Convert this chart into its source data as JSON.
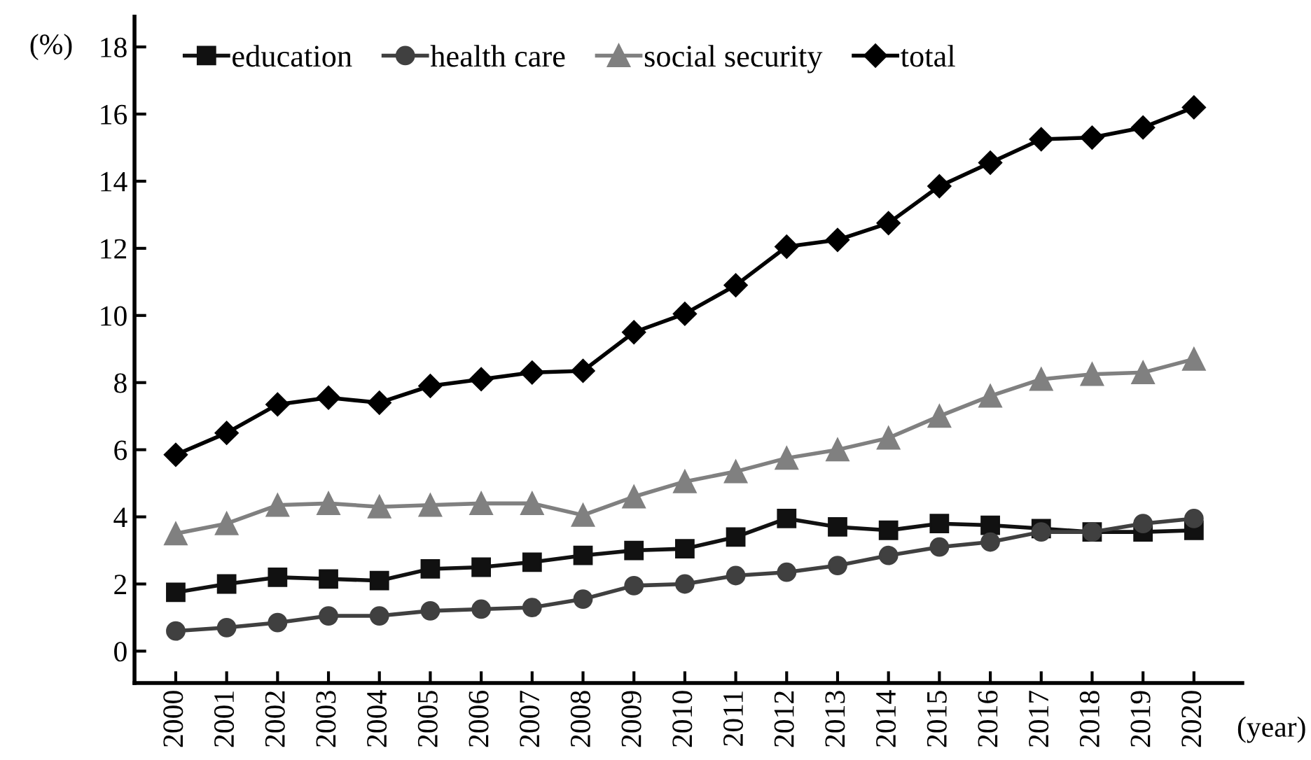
{
  "chart_data": {
    "type": "line",
    "ylabel": "(%)",
    "xlabel": "(year)",
    "categories": [
      "2000",
      "2001",
      "2002",
      "2003",
      "2004",
      "2005",
      "2006",
      "2007",
      "2008",
      "2009",
      "2010",
      "2011",
      "2012",
      "2013",
      "2014",
      "2015",
      "2016",
      "2017",
      "2018",
      "2019",
      "2020"
    ],
    "series": [
      {
        "name": "education",
        "color": "#111111",
        "marker": "square",
        "values": [
          1.75,
          2.0,
          2.2,
          2.15,
          2.1,
          2.45,
          2.5,
          2.65,
          2.85,
          3.0,
          3.05,
          3.4,
          3.95,
          3.7,
          3.6,
          3.8,
          3.75,
          3.65,
          3.55,
          3.55,
          3.6
        ]
      },
      {
        "name": "health care",
        "color": "#404040",
        "marker": "circle",
        "values": [
          0.6,
          0.7,
          0.85,
          1.05,
          1.05,
          1.2,
          1.25,
          1.3,
          1.55,
          1.95,
          2.0,
          2.25,
          2.35,
          2.55,
          2.85,
          3.1,
          3.25,
          3.55,
          3.55,
          3.8,
          3.95
        ]
      },
      {
        "name": "social security",
        "color": "#808080",
        "marker": "triangle",
        "values": [
          3.5,
          3.8,
          4.35,
          4.4,
          4.3,
          4.35,
          4.4,
          4.4,
          4.05,
          4.6,
          5.05,
          5.35,
          5.75,
          6.0,
          6.35,
          7.0,
          7.6,
          8.1,
          8.25,
          8.3,
          8.7
        ]
      },
      {
        "name": "total",
        "color": "#000000",
        "marker": "diamond",
        "values": [
          5.85,
          6.5,
          7.35,
          7.55,
          7.4,
          7.9,
          8.1,
          8.3,
          8.35,
          9.5,
          10.05,
          10.9,
          12.05,
          12.25,
          12.75,
          13.85,
          14.55,
          15.25,
          15.3,
          15.6,
          16.2
        ]
      }
    ],
    "ylim": [
      -0.95,
      18.9
    ],
    "yticks": [
      0,
      2,
      4,
      6,
      8,
      10,
      12,
      14,
      16,
      18
    ],
    "grid": false,
    "legend": "top left",
    "line_style": "solid"
  }
}
